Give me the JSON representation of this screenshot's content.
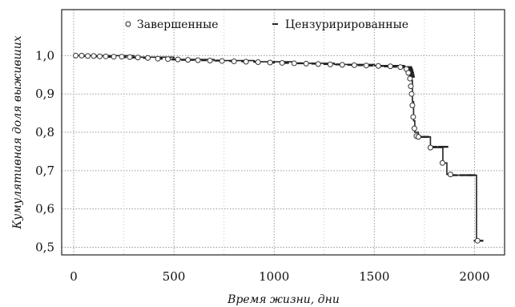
{
  "chart_data": {
    "type": "line",
    "title": "",
    "xlabel": "Время жизни, дни",
    "ylabel": "Кумулятивная доля выживших",
    "xlim": [
      -60,
      2150
    ],
    "ylim": [
      0.48,
      1.12
    ],
    "xticks": [
      0,
      500,
      1000,
      1500,
      2000
    ],
    "yticks": [
      0.5,
      0.6,
      0.7,
      0.8,
      0.9,
      1.0
    ],
    "xtick_labels": [
      "0",
      "500",
      "1000",
      "1500",
      "2000"
    ],
    "ytick_labels": [
      "0,5",
      "0,6",
      "0,7",
      "0,8",
      "0,9",
      "1,0"
    ],
    "grid": true,
    "legend_position": "top",
    "colors": {
      "line": "#222222",
      "grid": "#9a9a9a",
      "complete_marker_fill": "#ffffff",
      "censored_marker": "#222222"
    },
    "series": [
      {
        "name": "Завершенные",
        "marker": "open-circle",
        "x": [
          10,
          40,
          70,
          100,
          130,
          160,
          200,
          240,
          280,
          320,
          370,
          420,
          470,
          520,
          570,
          620,
          680,
          740,
          800,
          860,
          920,
          980,
          1040,
          1100,
          1160,
          1220,
          1280,
          1340,
          1400,
          1460,
          1520,
          1580,
          1630,
          1660,
          1670,
          1678,
          1682,
          1686,
          1690,
          1694,
          1700,
          1710,
          1720,
          1780,
          1840,
          1880,
          2015
        ],
        "y": [
          1.0,
          1.0,
          0.999,
          0.999,
          0.998,
          0.998,
          0.997,
          0.997,
          0.996,
          0.995,
          0.994,
          0.992,
          0.991,
          0.99,
          0.989,
          0.988,
          0.987,
          0.986,
          0.985,
          0.984,
          0.983,
          0.982,
          0.981,
          0.98,
          0.979,
          0.978,
          0.977,
          0.976,
          0.975,
          0.974,
          0.973,
          0.972,
          0.97,
          0.965,
          0.955,
          0.94,
          0.92,
          0.9,
          0.87,
          0.84,
          0.81,
          0.79,
          0.788,
          0.76,
          0.72,
          0.69,
          0.517
        ]
      },
      {
        "name": "Цензурирированные",
        "marker": "dash",
        "x": [
          60,
          120,
          180,
          250,
          300,
          360,
          430,
          500,
          550,
          590,
          650,
          720,
          790,
          850,
          910,
          990,
          1060,
          1130,
          1200,
          1260,
          1320,
          1380,
          1430,
          1480,
          1530,
          1560,
          1600,
          1640,
          1660,
          1672,
          1676,
          1678,
          1680,
          1682,
          1684,
          1686,
          1688,
          1740,
          1760,
          1800,
          1830,
          1855,
          1900,
          1940,
          1970,
          1990,
          2010,
          2030
        ],
        "y": [
          0.999,
          0.998,
          0.997,
          0.996,
          0.995,
          0.994,
          0.992,
          0.99,
          0.989,
          0.989,
          0.988,
          0.987,
          0.986,
          0.985,
          0.984,
          0.982,
          0.981,
          0.98,
          0.979,
          0.978,
          0.977,
          0.976,
          0.975,
          0.974,
          0.973,
          0.972,
          0.971,
          0.97,
          0.97,
          0.97,
          0.968,
          0.965,
          0.962,
          0.958,
          0.955,
          0.95,
          0.945,
          0.788,
          0.788,
          0.762,
          0.762,
          0.762,
          0.688,
          0.688,
          0.688,
          0.688,
          0.517,
          0.517
        ]
      }
    ],
    "survival_steps": {
      "x": [
        0,
        250,
        300,
        500,
        700,
        900,
        1100,
        1300,
        1500,
        1650,
        1678,
        1684,
        1690,
        1696,
        1702,
        1720,
        1780,
        1842,
        1862,
        1880,
        2010,
        2030
      ],
      "y": [
        1.0,
        1.0,
        0.996,
        0.99,
        0.987,
        0.984,
        0.98,
        0.977,
        0.974,
        0.97,
        0.97,
        0.935,
        0.88,
        0.83,
        0.8,
        0.788,
        0.76,
        0.72,
        0.69,
        0.688,
        0.517,
        0.517
      ]
    }
  }
}
